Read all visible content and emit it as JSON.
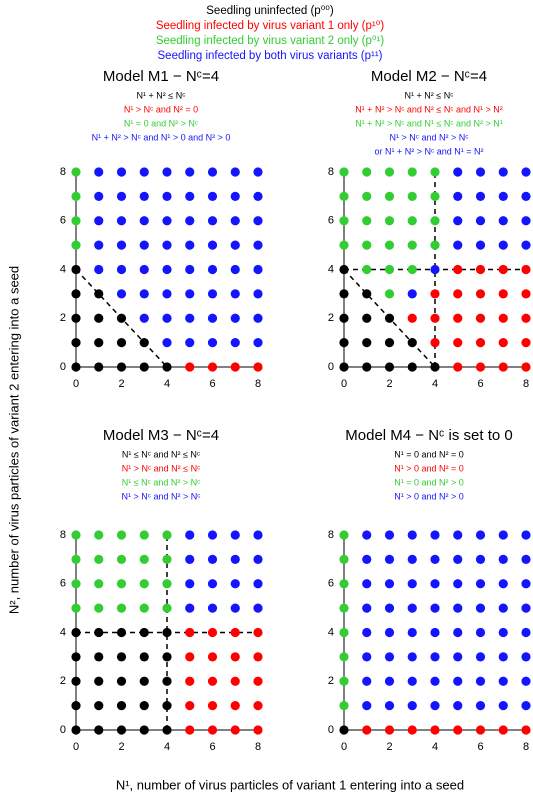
{
  "legend": [
    {
      "name": "Seedling uninfected (p⁰⁰)",
      "color": "#000000"
    },
    {
      "name": "Seedling infected by virus variant 1 only (p¹⁰)",
      "color": "#ff0000"
    },
    {
      "name": "Seedling infected by virus variant 2 only (p⁰¹)",
      "color": "#33cc33"
    },
    {
      "name": "Seedling infected by both virus variants (p¹¹)",
      "color": "#1414ff"
    }
  ],
  "x_label": "N¹, number of virus particles of variant 1 entering into a seed",
  "y_label": "N², number of virus particles of variant 2 entering into a seed",
  "chart_data": [
    {
      "type": "scatter",
      "title": "Model M1 − Nᶜ=4",
      "conditions": [
        {
          "text": "N¹ + N² ≤ Nᶜ",
          "color": "#000000"
        },
        {
          "text": "N¹ > Nᶜ and N² = 0",
          "color": "#ff0000"
        },
        {
          "text": "N¹ = 0 and N² > Nᶜ",
          "color": "#33cc33"
        },
        {
          "text": "N¹ + N² > Nᶜ and N¹ > 0 and N² > 0",
          "color": "#1414ff"
        }
      ],
      "xlim": [
        0,
        8
      ],
      "ylim": [
        0,
        8
      ],
      "xticks": [
        0,
        2,
        4,
        6,
        8
      ],
      "yticks": [
        0,
        2,
        4,
        6,
        8
      ],
      "lines": [
        {
          "x": [
            0,
            4
          ],
          "y": [
            4,
            0
          ]
        }
      ],
      "series": [
        {
          "color": "#000000",
          "x": [
            0,
            1,
            2,
            3,
            4,
            0,
            1,
            2,
            3,
            0,
            1,
            2,
            0,
            1,
            0
          ],
          "y": [
            0,
            0,
            0,
            0,
            0,
            1,
            1,
            1,
            1,
            2,
            2,
            2,
            3,
            3,
            4
          ]
        },
        {
          "color": "#ff0000",
          "x": [
            5,
            6,
            7,
            8
          ],
          "y": [
            0,
            0,
            0,
            0
          ]
        },
        {
          "color": "#33cc33",
          "x": [
            0,
            0,
            0,
            0
          ],
          "y": [
            5,
            6,
            7,
            8
          ]
        },
        {
          "color": "#1414ff",
          "x": [
            4,
            5,
            6,
            7,
            8,
            3,
            4,
            5,
            6,
            7,
            8,
            2,
            3,
            4,
            5,
            6,
            7,
            8,
            1,
            2,
            3,
            4,
            5,
            6,
            7,
            8,
            1,
            2,
            3,
            4,
            5,
            6,
            7,
            8,
            1,
            2,
            3,
            4,
            5,
            6,
            7,
            8,
            1,
            2,
            3,
            4,
            5,
            6,
            7,
            8,
            1,
            2,
            3,
            4,
            5,
            6,
            7,
            8
          ],
          "y": [
            1,
            1,
            1,
            1,
            1,
            2,
            2,
            2,
            2,
            2,
            2,
            3,
            3,
            3,
            3,
            3,
            3,
            3,
            4,
            4,
            4,
            4,
            4,
            4,
            4,
            4,
            5,
            5,
            5,
            5,
            5,
            5,
            5,
            5,
            6,
            6,
            6,
            6,
            6,
            6,
            6,
            6,
            7,
            7,
            7,
            7,
            7,
            7,
            7,
            7,
            8,
            8,
            8,
            8,
            8,
            8,
            8,
            8
          ]
        }
      ]
    },
    {
      "type": "scatter",
      "title": "Model M2 − Nᶜ=4",
      "conditions": [
        {
          "text": "N¹ + N² ≤ Nᶜ",
          "color": "#000000"
        },
        {
          "text": "N¹ + N² > Nᶜ and N² ≤ Nᶜ and N¹ > N²",
          "color": "#ff0000"
        },
        {
          "text": "N¹ + N² > Nᶜ and N¹ ≤ Nᶜ and N² > N¹",
          "color": "#33cc33"
        },
        {
          "text": "N¹ > Nᶜ and N² > Nᶜ",
          "color": "#1414ff"
        },
        {
          "text": "or N¹ + N² > Nᶜ and N¹ = N²",
          "color": "#1414ff"
        }
      ],
      "xlim": [
        0,
        8
      ],
      "ylim": [
        0,
        8
      ],
      "xticks": [
        0,
        2,
        4,
        6,
        8
      ],
      "yticks": [
        0,
        2,
        4,
        6,
        8
      ],
      "lines": [
        {
          "x": [
            0,
            4
          ],
          "y": [
            4,
            0
          ]
        },
        {
          "x": [
            0,
            8
          ],
          "y": [
            4,
            4
          ]
        },
        {
          "x": [
            4,
            4
          ],
          "y": [
            0,
            8
          ]
        }
      ],
      "series": [
        {
          "color": "#000000",
          "x": [
            0,
            1,
            2,
            3,
            4,
            0,
            1,
            2,
            3,
            0,
            1,
            2,
            0,
            1,
            0
          ],
          "y": [
            0,
            0,
            0,
            0,
            0,
            1,
            1,
            1,
            1,
            2,
            2,
            2,
            3,
            3,
            4
          ]
        },
        {
          "color": "#ff0000",
          "x": [
            5,
            6,
            7,
            8,
            4,
            5,
            6,
            7,
            8,
            3,
            4,
            5,
            6,
            7,
            8,
            4,
            5,
            6,
            7,
            8,
            5,
            6,
            7,
            8
          ],
          "y": [
            0,
            0,
            0,
            0,
            1,
            1,
            1,
            1,
            1,
            2,
            2,
            2,
            2,
            2,
            2,
            3,
            3,
            3,
            3,
            3,
            4,
            4,
            4,
            4
          ]
        },
        {
          "color": "#33cc33",
          "x": [
            2,
            1,
            2,
            3,
            0,
            1,
            2,
            3,
            4,
            0,
            1,
            2,
            3,
            4,
            0,
            1,
            2,
            3,
            4,
            0,
            1,
            2,
            3,
            4
          ],
          "y": [
            3,
            4,
            4,
            4,
            5,
            5,
            5,
            5,
            5,
            6,
            6,
            6,
            6,
            6,
            7,
            7,
            7,
            7,
            7,
            8,
            8,
            8,
            8,
            8
          ]
        },
        {
          "color": "#1414ff",
          "x": [
            3,
            4,
            5,
            6,
            7,
            8,
            5,
            6,
            7,
            8,
            5,
            6,
            7,
            8,
            5,
            6,
            7,
            8
          ],
          "y": [
            3,
            4,
            5,
            5,
            5,
            5,
            6,
            6,
            6,
            6,
            7,
            7,
            7,
            7,
            8,
            8,
            8,
            8
          ]
        }
      ]
    },
    {
      "type": "scatter",
      "title": "Model M3 − Nᶜ=4",
      "conditions": [
        {
          "text": "N¹ ≤ Nᶜ and N² ≤ Nᶜ",
          "color": "#000000"
        },
        {
          "text": "N¹ > Nᶜ and N² ≤ Nᶜ",
          "color": "#ff0000"
        },
        {
          "text": "N¹ ≤ Nᶜ and N² > Nᶜ",
          "color": "#33cc33"
        },
        {
          "text": "N¹ > Nᶜ and N² > Nᶜ",
          "color": "#1414ff"
        }
      ],
      "xlim": [
        0,
        8
      ],
      "ylim": [
        0,
        8
      ],
      "xticks": [
        0,
        2,
        4,
        6,
        8
      ],
      "yticks": [
        0,
        2,
        4,
        6,
        8
      ],
      "lines": [
        {
          "x": [
            0,
            8
          ],
          "y": [
            4,
            4
          ]
        },
        {
          "x": [
            4,
            4
          ],
          "y": [
            0,
            8
          ]
        }
      ],
      "series": [
        {
          "color": "#000000",
          "x": [
            0,
            1,
            2,
            3,
            4,
            0,
            1,
            2,
            3,
            4,
            0,
            1,
            2,
            3,
            4,
            0,
            1,
            2,
            3,
            4,
            0,
            1,
            2,
            3,
            4
          ],
          "y": [
            0,
            0,
            0,
            0,
            0,
            1,
            1,
            1,
            1,
            1,
            2,
            2,
            2,
            2,
            2,
            3,
            3,
            3,
            3,
            3,
            4,
            4,
            4,
            4,
            4
          ]
        },
        {
          "color": "#ff0000",
          "x": [
            5,
            6,
            7,
            8,
            5,
            6,
            7,
            8,
            5,
            6,
            7,
            8,
            5,
            6,
            7,
            8,
            5,
            6,
            7,
            8
          ],
          "y": [
            0,
            0,
            0,
            0,
            1,
            1,
            1,
            1,
            2,
            2,
            2,
            2,
            3,
            3,
            3,
            3,
            4,
            4,
            4,
            4
          ]
        },
        {
          "color": "#33cc33",
          "x": [
            0,
            1,
            2,
            3,
            4,
            0,
            1,
            2,
            3,
            4,
            0,
            1,
            2,
            3,
            4,
            0,
            1,
            2,
            3,
            4
          ],
          "y": [
            5,
            5,
            5,
            5,
            5,
            6,
            6,
            6,
            6,
            6,
            7,
            7,
            7,
            7,
            7,
            8,
            8,
            8,
            8,
            8
          ]
        },
        {
          "color": "#1414ff",
          "x": [
            5,
            6,
            7,
            8,
            5,
            6,
            7,
            8,
            5,
            6,
            7,
            8,
            5,
            6,
            7,
            8
          ],
          "y": [
            5,
            5,
            5,
            5,
            6,
            6,
            6,
            6,
            7,
            7,
            7,
            7,
            8,
            8,
            8,
            8
          ]
        }
      ]
    },
    {
      "type": "scatter",
      "title": "Model M4 − Nᶜ is set to 0",
      "conditions": [
        {
          "text": "N¹ = 0 and N² = 0",
          "color": "#000000"
        },
        {
          "text": "N¹ > 0 and N² = 0",
          "color": "#ff0000"
        },
        {
          "text": "N¹ = 0 and N² > 0",
          "color": "#33cc33"
        },
        {
          "text": "N¹ > 0 and N² > 0",
          "color": "#1414ff"
        }
      ],
      "xlim": [
        0,
        8
      ],
      "ylim": [
        0,
        8
      ],
      "xticks": [
        0,
        2,
        4,
        6,
        8
      ],
      "yticks": [
        0,
        2,
        4,
        6,
        8
      ],
      "series": [
        {
          "color": "#000000",
          "x": [
            0
          ],
          "y": [
            0
          ]
        },
        {
          "color": "#ff0000",
          "x": [
            1,
            2,
            3,
            4,
            5,
            6,
            7,
            8
          ],
          "y": [
            0,
            0,
            0,
            0,
            0,
            0,
            0,
            0
          ]
        },
        {
          "color": "#33cc33",
          "x": [
            0,
            0,
            0,
            0,
            0,
            0,
            0,
            0
          ],
          "y": [
            1,
            2,
            3,
            4,
            5,
            6,
            7,
            8
          ]
        },
        {
          "color": "#1414ff",
          "x": [
            1,
            2,
            3,
            4,
            5,
            6,
            7,
            8,
            1,
            2,
            3,
            4,
            5,
            6,
            7,
            8,
            1,
            2,
            3,
            4,
            5,
            6,
            7,
            8,
            1,
            2,
            3,
            4,
            5,
            6,
            7,
            8,
            1,
            2,
            3,
            4,
            5,
            6,
            7,
            8,
            1,
            2,
            3,
            4,
            5,
            6,
            7,
            8,
            1,
            2,
            3,
            4,
            5,
            6,
            7,
            8,
            1,
            2,
            3,
            4,
            5,
            6,
            7,
            8
          ],
          "y": [
            1,
            1,
            1,
            1,
            1,
            1,
            1,
            1,
            2,
            2,
            2,
            2,
            2,
            2,
            2,
            2,
            3,
            3,
            3,
            3,
            3,
            3,
            3,
            3,
            4,
            4,
            4,
            4,
            4,
            4,
            4,
            4,
            5,
            5,
            5,
            5,
            5,
            5,
            5,
            5,
            6,
            6,
            6,
            6,
            6,
            6,
            6,
            6,
            7,
            7,
            7,
            7,
            7,
            7,
            7,
            7,
            8,
            8,
            8,
            8,
            8,
            8,
            8,
            8
          ]
        }
      ]
    }
  ]
}
